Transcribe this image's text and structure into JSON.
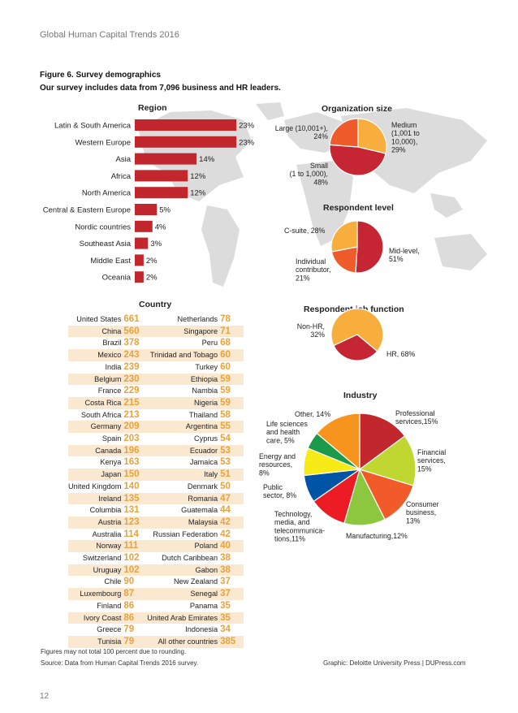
{
  "page": {
    "header": "Global Human Capital Trends 2016",
    "figure_title": "Figure 6. Survey demographics",
    "figure_subtitle": "Our survey includes data from 7,096 business and HR leaders.",
    "footnote_rounding": "Figures may not total 100 percent due to rounding.",
    "footnote_source": "Source: Data from Human Capital Trends 2016 survey.",
    "credit": "Graphic: Deloitte University Press  |  DUPress.com",
    "page_number": "12"
  },
  "colors": {
    "bar": "#c1272d",
    "value_orange": "#e8a33d",
    "row_shade": "#fbe8d0",
    "map": "#dcdcdc"
  },
  "chart_data": [
    {
      "type": "bar",
      "title": "Region",
      "orientation": "horizontal",
      "categories": [
        "Latin & South America",
        "Western Europe",
        "Asia",
        "Africa",
        "North America",
        "Central & Eastern Europe",
        "Nordic countries",
        "Southeast Asia",
        "Middle East",
        "Oceania"
      ],
      "values": [
        23,
        23,
        14,
        12,
        12,
        5,
        4,
        3,
        2,
        2
      ],
      "labels": [
        "23%",
        "23%",
        "14%",
        "12%",
        "12%",
        "5%",
        "4%",
        "3%",
        "2%",
        "2%"
      ],
      "color": "#c1272d"
    },
    {
      "type": "table",
      "title": "Country",
      "rows": [
        [
          "United States",
          661,
          "Netherlands",
          78
        ],
        [
          "China",
          560,
          "Singapore",
          71
        ],
        [
          "Brazil",
          378,
          "Peru",
          68
        ],
        [
          "Mexico",
          243,
          "Trinidad and Tobago",
          60
        ],
        [
          "India",
          239,
          "Turkey",
          60
        ],
        [
          "Belgium",
          230,
          "Ethiopia",
          59
        ],
        [
          "France",
          229,
          "Nambia",
          59
        ],
        [
          "Costa Rica",
          215,
          "Nigeria",
          59
        ],
        [
          "South Africa",
          213,
          "Thailand",
          58
        ],
        [
          "Germany",
          209,
          "Argentina",
          55
        ],
        [
          "Spain",
          203,
          "Cyprus",
          54
        ],
        [
          "Canada",
          196,
          "Ecuador",
          53
        ],
        [
          "Kenya",
          163,
          "Jamaica",
          53
        ],
        [
          "Japan",
          150,
          "Italy",
          51
        ],
        [
          "United Kingdom",
          140,
          "Denmark",
          50
        ],
        [
          "Ireland",
          135,
          "Romania",
          47
        ],
        [
          "Columbia",
          131,
          "Guatemala",
          44
        ],
        [
          "Austria",
          123,
          "Malaysia",
          42
        ],
        [
          "Australia",
          114,
          "Russian Federation",
          42
        ],
        [
          "Norway",
          111,
          "Poland",
          40
        ],
        [
          "Switzerland",
          102,
          "Dutch Caribbean",
          38
        ],
        [
          "Uruguay",
          102,
          "Gabon",
          38
        ],
        [
          "Chile",
          90,
          "New Zealand",
          37
        ],
        [
          "Luxembourg",
          87,
          "Senegal",
          37
        ],
        [
          "Finland",
          86,
          "Panama",
          35
        ],
        [
          "Ivory Coast",
          86,
          "United Arab Emirates",
          35
        ],
        [
          "Greece",
          79,
          "Indonesia",
          34
        ],
        [
          "Tunisia",
          79,
          "All other countries",
          385
        ]
      ]
    },
    {
      "type": "pie",
      "title": "Organization size",
      "slices": [
        {
          "lines": [
            "Medium",
            "(1,001 to",
            "10,000),",
            "29%"
          ],
          "value": 29,
          "color": "#f7ae3c"
        },
        {
          "lines": [
            "Small",
            "(1 to 1,000),",
            "48%"
          ],
          "value": 48,
          "color": "#c62633"
        },
        {
          "lines": [
            "Large (10,001+),",
            "24%"
          ],
          "value": 24,
          "color": "#ef5b2b"
        }
      ]
    },
    {
      "type": "pie",
      "title": "Respondent level",
      "slices": [
        {
          "lines": [
            "Mid-level,",
            "51%"
          ],
          "value": 51,
          "color": "#c62633"
        },
        {
          "lines": [
            "Individual",
            "contributor,",
            "21%"
          ],
          "value": 21,
          "color": "#ef5b2b"
        },
        {
          "lines": [
            "C-suite, 28%"
          ],
          "value": 28,
          "color": "#f7ae3c"
        }
      ]
    },
    {
      "type": "pie",
      "title": "Respondent job function",
      "slices": [
        {
          "lines": [
            "HR, 68%"
          ],
          "value": 68,
          "color": "#f7ae3c"
        },
        {
          "lines": [
            "Non-HR,",
            "32%"
          ],
          "value": 32,
          "color": "#c62633"
        }
      ]
    },
    {
      "type": "pie",
      "title": "Industry",
      "slices": [
        {
          "lines": [
            "Professional",
            "services,15%"
          ],
          "value": 15,
          "color": "#c1272d"
        },
        {
          "lines": [
            "Financial",
            "services,",
            "15%"
          ],
          "value": 15,
          "color": "#bfd730"
        },
        {
          "lines": [
            "Consumer",
            "business,",
            "13%"
          ],
          "value": 13,
          "color": "#f15a29"
        },
        {
          "lines": [
            "Manufacturing,12%"
          ],
          "value": 12,
          "color": "#8dc63f"
        },
        {
          "lines": [
            "Technology,",
            "media, and",
            "telecommunica-",
            "tions,11%"
          ],
          "value": 11,
          "color": "#ed1c24"
        },
        {
          "lines": [
            "Public",
            "sector, 8%"
          ],
          "value": 8,
          "color": "#0054a6"
        },
        {
          "lines": [
            "Energy and",
            "resources,",
            "8%"
          ],
          "value": 8,
          "color": "#f6eb16"
        },
        {
          "lines": [
            "Life sciences",
            "and health",
            "care, 5%"
          ],
          "value": 5,
          "color": "#1a9a4a"
        },
        {
          "lines": [
            "Other, 14%"
          ],
          "value": 14,
          "color": "#f7941d"
        }
      ]
    }
  ]
}
